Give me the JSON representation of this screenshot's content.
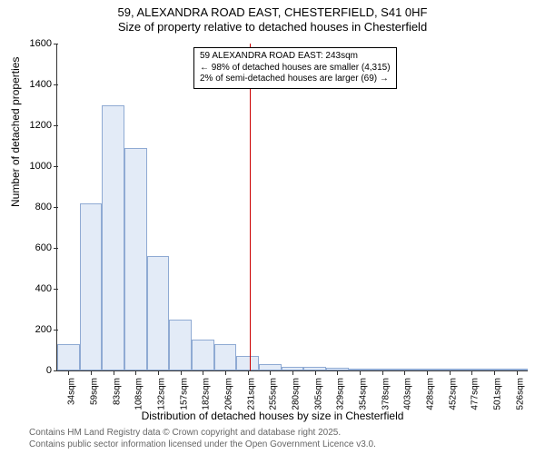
{
  "title_line1": "59, ALEXANDRA ROAD EAST, CHESTERFIELD, S41 0HF",
  "title_line2": "Size of property relative to detached houses in Chesterfield",
  "ylabel": "Number of detached properties",
  "xlabel": "Distribution of detached houses by size in Chesterfield",
  "credits_line1": "Contains HM Land Registry data © Crown copyright and database right 2025.",
  "credits_line2": "Contains public sector information licensed under the Open Government Licence v3.0.",
  "chart": {
    "type": "histogram",
    "ylim": [
      0,
      1600
    ],
    "ytick_step": 200,
    "yticks": [
      0,
      200,
      400,
      600,
      800,
      1000,
      1200,
      1400,
      1600
    ],
    "categories": [
      "34sqm",
      "59sqm",
      "83sqm",
      "108sqm",
      "132sqm",
      "157sqm",
      "182sqm",
      "206sqm",
      "231sqm",
      "255sqm",
      "280sqm",
      "305sqm",
      "329sqm",
      "354sqm",
      "378sqm",
      "403sqm",
      "428sqm",
      "452sqm",
      "477sqm",
      "501sqm",
      "526sqm"
    ],
    "values": [
      130,
      820,
      1300,
      1090,
      560,
      250,
      150,
      130,
      70,
      30,
      20,
      18,
      12,
      8,
      5,
      3,
      2,
      2,
      2,
      1,
      1
    ],
    "bar_fill": "#e3ebf7",
    "bar_stroke": "#8faad3",
    "background_color": "#ffffff",
    "axis_color": "#333333",
    "marker_x_index": 8.6,
    "marker_color": "#cc0000",
    "annotation": {
      "line1": "59 ALEXANDRA ROAD EAST: 243sqm",
      "line2": "← 98% of detached houses are smaller (4,315)",
      "line3": "2% of semi-detached houses are larger (69) →"
    },
    "title_fontsize": 13,
    "label_fontsize": 12,
    "tick_fontsize": 11
  }
}
